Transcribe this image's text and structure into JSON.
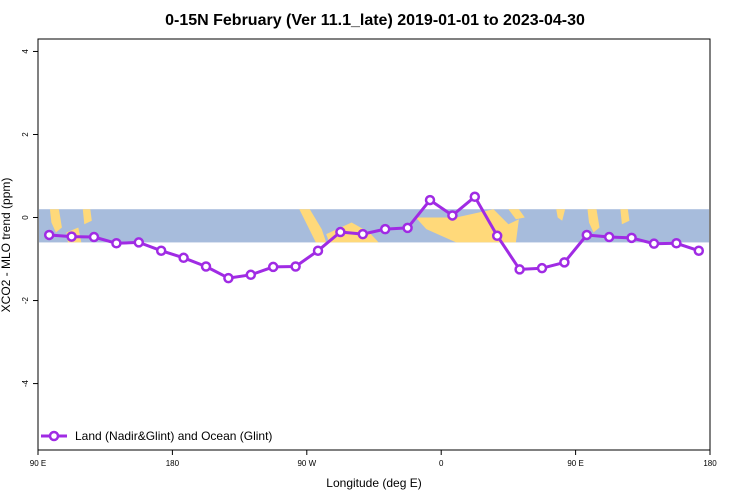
{
  "chart_data": {
    "type": "line",
    "title": "0-15N February (Ver 11.1_late)   2019-01-01 to 2023-04-30",
    "xlabel": "Longitude (deg E)",
    "ylabel": "XCO2 - MLO trend (ppm)",
    "x_ticks": [
      "90 E",
      "180",
      "90 W",
      "0",
      "90 E",
      "180"
    ],
    "y_ticks": [
      "4",
      "2",
      "0",
      "-2",
      "-4"
    ],
    "y_tick_values": [
      4,
      2,
      0,
      -2,
      -4
    ],
    "x_tick_values": [
      90,
      180,
      270,
      360,
      450,
      540
    ],
    "xlim": [
      90,
      540
    ],
    "ylim": [
      -5.6,
      4.3
    ],
    "background_band": {
      "lat_range": "0-15N",
      "ocean_color": "#a7bcdc",
      "land_color": "#ffd97a",
      "ymin": -0.6,
      "ymax": 0.2
    },
    "grid": false,
    "legend_position": "bottom-left",
    "series": [
      {
        "name": "Land (Nadir&Glint) and Ocean (Glint)",
        "color": "#a02be4",
        "x": [
          97.5,
          112.5,
          127.5,
          142.5,
          157.5,
          172.5,
          187.5,
          202.5,
          217.5,
          232.5,
          247.5,
          262.5,
          277.5,
          292.5,
          307.5,
          322.5,
          337.5,
          352.5,
          367.5,
          382.5,
          397.5,
          412.5,
          427.5,
          442.5,
          457.5,
          472.5,
          487.5,
          502.5,
          517.5,
          532.5
        ],
        "y": [
          -0.42,
          -0.46,
          -0.47,
          -0.62,
          -0.6,
          -0.8,
          -0.97,
          -1.18,
          -1.46,
          -1.38,
          -1.19,
          -1.18,
          -0.8,
          -0.35,
          -0.4,
          -0.28,
          -0.25,
          0.42,
          0.05,
          0.5,
          -0.44,
          -1.25,
          -1.22,
          -1.08,
          -0.42,
          -0.47,
          -0.49,
          -0.63,
          -0.62,
          -0.8
        ]
      }
    ]
  }
}
